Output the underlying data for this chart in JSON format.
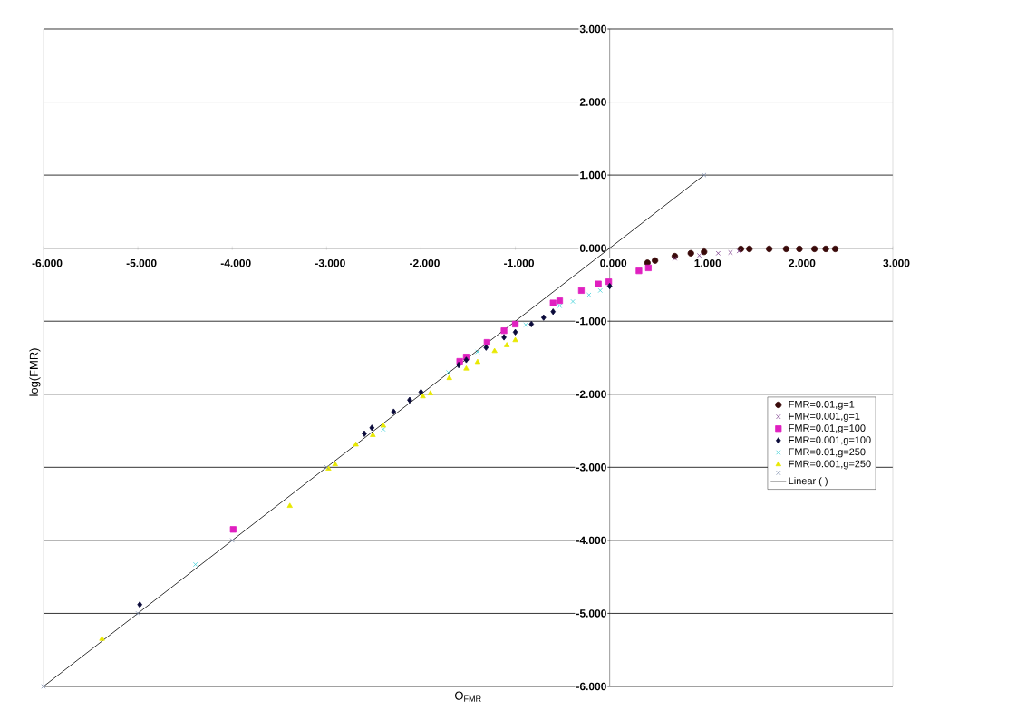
{
  "chart_data": {
    "type": "scatter",
    "xlabel": "O$_{FMR}$",
    "ylabel": "log(FMR)",
    "xlim": [
      -6,
      3
    ],
    "ylim": [
      -6,
      3
    ],
    "xticks": [
      {
        "value": -6,
        "label": "-6.000"
      },
      {
        "value": -5,
        "label": "-5.000"
      },
      {
        "value": -4,
        "label": "-4.000"
      },
      {
        "value": -3,
        "label": "-3.000"
      },
      {
        "value": -2,
        "label": "-2.000"
      },
      {
        "value": -1,
        "label": "-1.000"
      },
      {
        "value": 0,
        "label": "0.000"
      },
      {
        "value": 1,
        "label": "1.000"
      },
      {
        "value": 2,
        "label": "2.000"
      },
      {
        "value": 3,
        "label": "3.000"
      }
    ],
    "yticks": [
      {
        "value": -6,
        "label": "-6.000"
      },
      {
        "value": -5,
        "label": "-5.000"
      },
      {
        "value": -4,
        "label": "-4.000"
      },
      {
        "value": -3,
        "label": "-3.000"
      },
      {
        "value": -2,
        "label": "-2.000"
      },
      {
        "value": -1,
        "label": "-1.000"
      },
      {
        "value": 0,
        "label": "0.000"
      },
      {
        "value": 1,
        "label": "1.000"
      },
      {
        "value": 2,
        "label": "2.000"
      },
      {
        "value": 3,
        "label": "3.000"
      }
    ],
    "grid": "y",
    "legend": "right",
    "series": [
      {
        "name": "FMR=0.01,g=1",
        "color": "#3a0a0a",
        "marker": "circle",
        "x": [
          0.4,
          0.48,
          0.69,
          0.86,
          1.0,
          1.39,
          1.48,
          1.69,
          1.87,
          2.01,
          2.17,
          2.29,
          2.39
        ],
        "values": [
          -0.2,
          -0.17,
          -0.11,
          -0.07,
          -0.05,
          -0.01,
          -0.01,
          -0.01,
          -0.01,
          -0.01,
          -0.01,
          -0.01,
          -0.01
        ]
      },
      {
        "name": "FMR=0.001,g=1",
        "color": "#7a3a8a",
        "marker": "cross",
        "x": [
          0.69,
          0.95,
          1.15,
          1.28,
          1.37
        ],
        "values": [
          -0.14,
          -0.1,
          -0.07,
          -0.06,
          -0.04
        ]
      },
      {
        "name": "FMR=0.01,g=100",
        "color": "#e020c0",
        "marker": "square",
        "x": [
          -3.99,
          -1.59,
          -1.52,
          -1.3,
          -1.12,
          -1.0,
          -0.6,
          -0.53,
          -0.3,
          -0.12,
          -0.01,
          0.31,
          0.41
        ],
        "values": [
          -3.85,
          -1.55,
          -1.49,
          -1.29,
          -1.13,
          -1.04,
          -0.75,
          -0.72,
          -0.58,
          -0.49,
          -0.46,
          -0.31,
          -0.27
        ]
      },
      {
        "name": "FMR=0.001,g=100",
        "color": "#0a0a3a",
        "marker": "diamond",
        "x": [
          -4.98,
          -2.6,
          -2.52,
          -2.29,
          -2.12,
          -2.0,
          -1.6,
          -1.52,
          -1.31,
          -1.12,
          -1.0,
          -0.83,
          -0.7,
          -0.6,
          0.0
        ],
        "values": [
          -4.88,
          -2.54,
          -2.46,
          -2.24,
          -2.08,
          -1.97,
          -1.6,
          -1.53,
          -1.36,
          -1.22,
          -1.15,
          -1.04,
          -0.95,
          -0.87,
          -0.52
        ]
      },
      {
        "name": "FMR=0.01,g=250",
        "color": "#40d0d8",
        "marker": "cross",
        "x": [
          -4.39,
          -2.98,
          -2.4,
          -1.71,
          -1.4,
          -0.89,
          -0.53,
          -0.39,
          -0.22,
          -0.1
        ],
        "values": [
          -4.33,
          null,
          -2.48,
          -1.7,
          -1.42,
          -1.05,
          -0.79,
          -0.73,
          -0.64,
          -0.58
        ]
      },
      {
        "name": "FMR=0.001,g=250",
        "color": "#e8e800",
        "marker": "triangle",
        "x": [
          -5.38,
          -3.39,
          -2.98,
          -2.91,
          -2.69,
          -2.51,
          -2.4,
          -1.98,
          -1.9,
          -1.7,
          -1.52,
          -1.4,
          -1.22,
          -1.09,
          -1.0
        ],
        "values": [
          -5.35,
          -3.53,
          -3.02,
          -2.96,
          -2.69,
          -2.56,
          -2.43,
          -2.03,
          -1.99,
          -1.78,
          -1.65,
          -1.56,
          -1.41,
          -1.33,
          -1.26
        ]
      },
      {
        "color": "#8090b0",
        "marker": "cross",
        "x": [
          -6,
          -5,
          -4,
          -3,
          1
        ],
        "values": [
          -6,
          -5,
          -4,
          -3,
          1
        ]
      },
      {
        "name": "Linear ( )",
        "type": "line",
        "color": "#000000",
        "marker": "none",
        "line_style": "solid",
        "x": [
          -6,
          1
        ],
        "values": [
          -6,
          1
        ]
      }
    ]
  }
}
